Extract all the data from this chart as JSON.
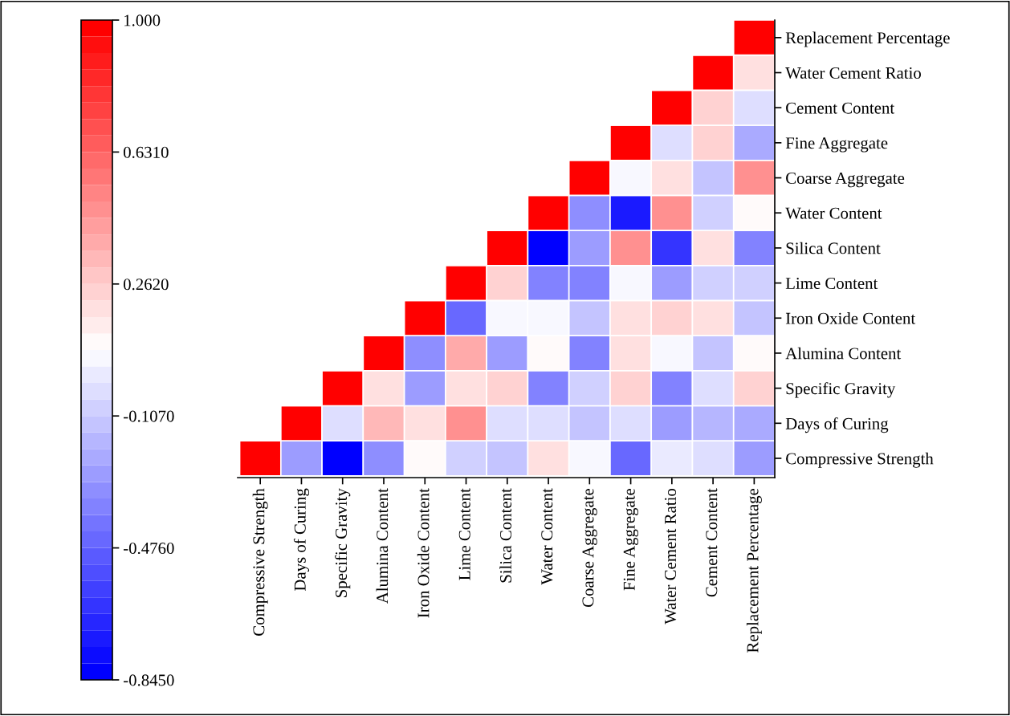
{
  "chart_data": {
    "type": "heatmap",
    "categories": [
      "Compressive Strength",
      "Days of Curing",
      "Specific Gravity",
      "Alumina Content",
      "Iron Oxide Content",
      "Lime Content",
      "Silica Content",
      "Water Content",
      "Coarse Aggregate",
      "Fine Aggregate",
      "Water Cement Ratio",
      "Cement Content",
      "Replacement Percentage"
    ],
    "y_categories": [
      "Replacement Percentage",
      "Water Cement Ratio",
      "Cement Content",
      "Fine Aggregate",
      "Coarse Aggregate",
      "Water Content",
      "Silica Content",
      "Lime Content",
      "Iron Oxide Content",
      "Alumina Content",
      "Specific Gravity",
      "Days of Curing",
      "Compressive Strength"
    ],
    "cells": [
      [
        null,
        null,
        null,
        null,
        null,
        null,
        null,
        null,
        null,
        null,
        null,
        null,
        1.0
      ],
      [
        null,
        null,
        null,
        null,
        null,
        null,
        null,
        null,
        null,
        null,
        null,
        1.0,
        0.2
      ],
      [
        null,
        null,
        null,
        null,
        null,
        null,
        null,
        null,
        null,
        null,
        1.0,
        0.25,
        -0.05
      ],
      [
        null,
        null,
        null,
        null,
        null,
        null,
        null,
        null,
        null,
        1.0,
        -0.05,
        0.22,
        -0.2
      ],
      [
        null,
        null,
        null,
        null,
        null,
        null,
        null,
        null,
        1.0,
        0.05,
        0.2,
        -0.12,
        0.45
      ],
      [
        null,
        null,
        null,
        null,
        null,
        null,
        null,
        1.0,
        -0.3,
        -0.75,
        0.45,
        -0.1,
        0.1
      ],
      [
        null,
        null,
        null,
        null,
        null,
        null,
        1.0,
        -0.845,
        -0.25,
        0.45,
        -0.65,
        0.2,
        -0.35
      ],
      [
        null,
        null,
        null,
        null,
        null,
        1.0,
        0.25,
        -0.35,
        -0.35,
        0.05,
        -0.25,
        -0.1,
        -0.1
      ],
      [
        null,
        null,
        null,
        null,
        1.0,
        -0.45,
        0.04,
        0.04,
        -0.12,
        0.2,
        0.25,
        0.2,
        -0.15
      ],
      [
        null,
        null,
        null,
        1.0,
        -0.3,
        0.4,
        -0.25,
        0.12,
        -0.35,
        0.18,
        0.05,
        -0.15,
        0.12
      ],
      [
        null,
        null,
        1.0,
        0.2,
        -0.25,
        0.18,
        0.25,
        -0.35,
        -0.1,
        0.25,
        -0.35,
        -0.05,
        0.25
      ],
      [
        null,
        1.0,
        -0.05,
        0.35,
        0.2,
        0.45,
        -0.05,
        -0.05,
        -0.15,
        -0.03,
        -0.25,
        -0.18,
        -0.2
      ],
      [
        1.0,
        -0.25,
        -0.845,
        -0.3,
        0.1,
        -0.1,
        -0.15,
        0.2,
        0.05,
        -0.45,
        0.03,
        -0.05,
        -0.25
      ]
    ],
    "clim": [
      -0.845,
      1.0
    ],
    "cticks": [
      {
        "value": 1.0,
        "label": "1.000"
      },
      {
        "value": 0.631,
        "label": "0.6310"
      },
      {
        "value": 0.262,
        "label": "0.2620"
      },
      {
        "value": -0.107,
        "label": "-0.1070"
      },
      {
        "value": -0.476,
        "label": "-0.4760"
      },
      {
        "value": -0.845,
        "label": "-0.8450"
      }
    ]
  }
}
